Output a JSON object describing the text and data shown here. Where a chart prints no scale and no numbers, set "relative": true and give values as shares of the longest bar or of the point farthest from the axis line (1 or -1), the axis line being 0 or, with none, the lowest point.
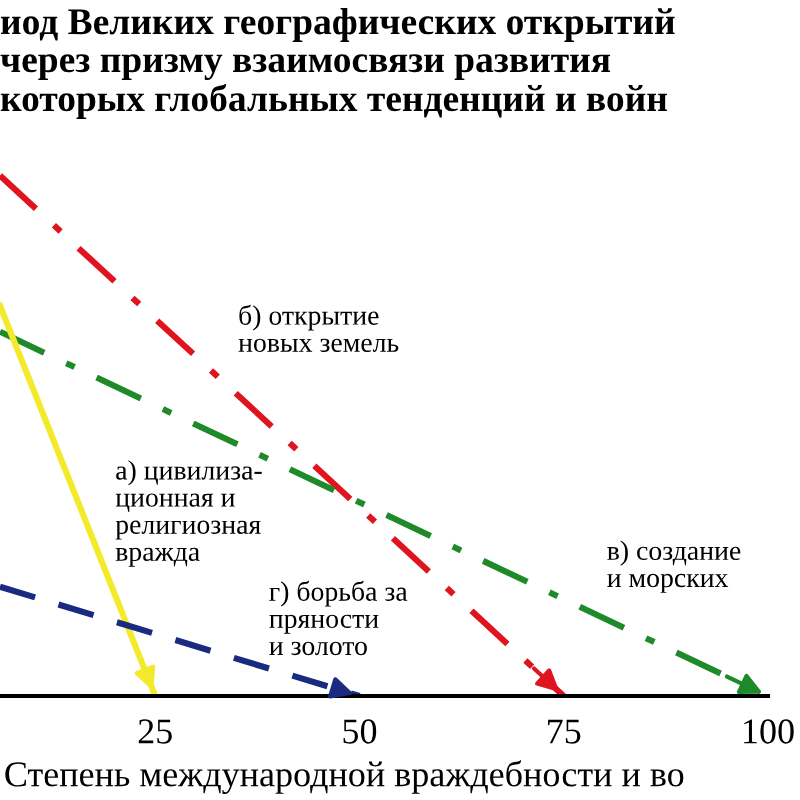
{
  "chart_data": {
    "type": "line",
    "relative": true,
    "title": "иод Великих географических открытий\nчерез призму взаимосвязи развития\nкоторых глобальных тенденций и войн",
    "xlabel": "Степень международной враждебности и во",
    "xlim": [
      6,
      100
    ],
    "xticks": [
      25,
      50,
      75,
      100
    ],
    "grid": false,
    "series": [
      {
        "name": "б) открытие\nновых земель",
        "color": "#e0141e",
        "line_style": "dashdot",
        "x": [
          6,
          75
        ],
        "values": [
          1.0,
          0
        ]
      },
      {
        "name": "в) создание\nи морских",
        "color": "#1e8a2a",
        "line_style": "dashdot",
        "x": [
          6,
          100
        ],
        "values": [
          0.7,
          0
        ]
      },
      {
        "name": "а) цивилиза-\nционная и\nрелигиозная\nвражда",
        "color": "#f2ea2a",
        "line_style": "solid",
        "x": [
          6,
          25
        ],
        "values": [
          0.75,
          0
        ]
      },
      {
        "name": "г) борьба за\nпряности\nи золото",
        "color": "#1a2a80",
        "line_style": "dashed",
        "x": [
          6,
          50
        ],
        "values": [
          0.21,
          0
        ]
      }
    ]
  }
}
